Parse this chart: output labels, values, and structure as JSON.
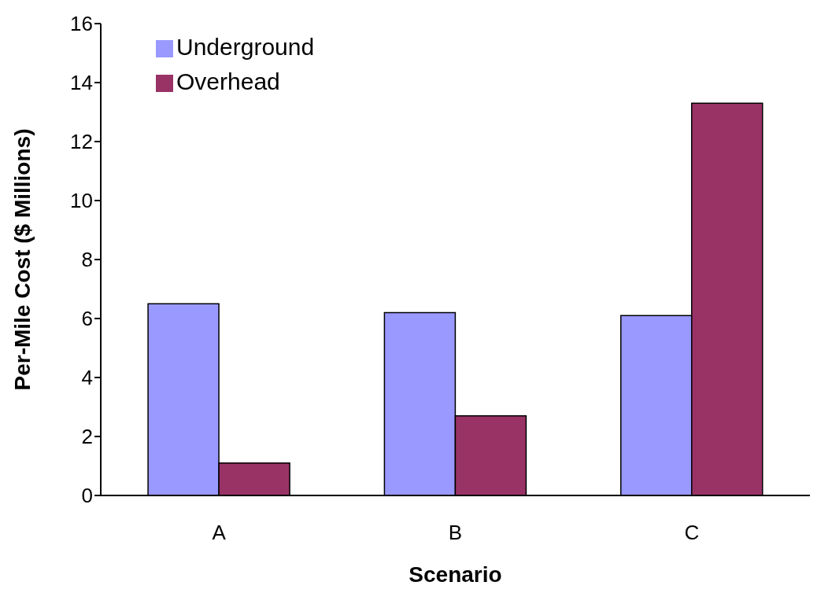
{
  "chart_data": {
    "type": "bar",
    "xlabel": "Scenario",
    "ylabel": "Per-Mile Cost ($ Millions)",
    "categories": [
      "A",
      "B",
      "C"
    ],
    "series": [
      {
        "name": "Underground",
        "color": "#9999ff",
        "values": [
          6.5,
          6.2,
          6.1
        ]
      },
      {
        "name": "Overhead",
        "color": "#993366",
        "values": [
          1.1,
          2.7,
          13.3
        ]
      }
    ],
    "ylim": [
      0,
      16
    ],
    "yticks": [
      0,
      2,
      4,
      6,
      8,
      10,
      12,
      14,
      16
    ],
    "grid": false,
    "legend": "top left"
  }
}
